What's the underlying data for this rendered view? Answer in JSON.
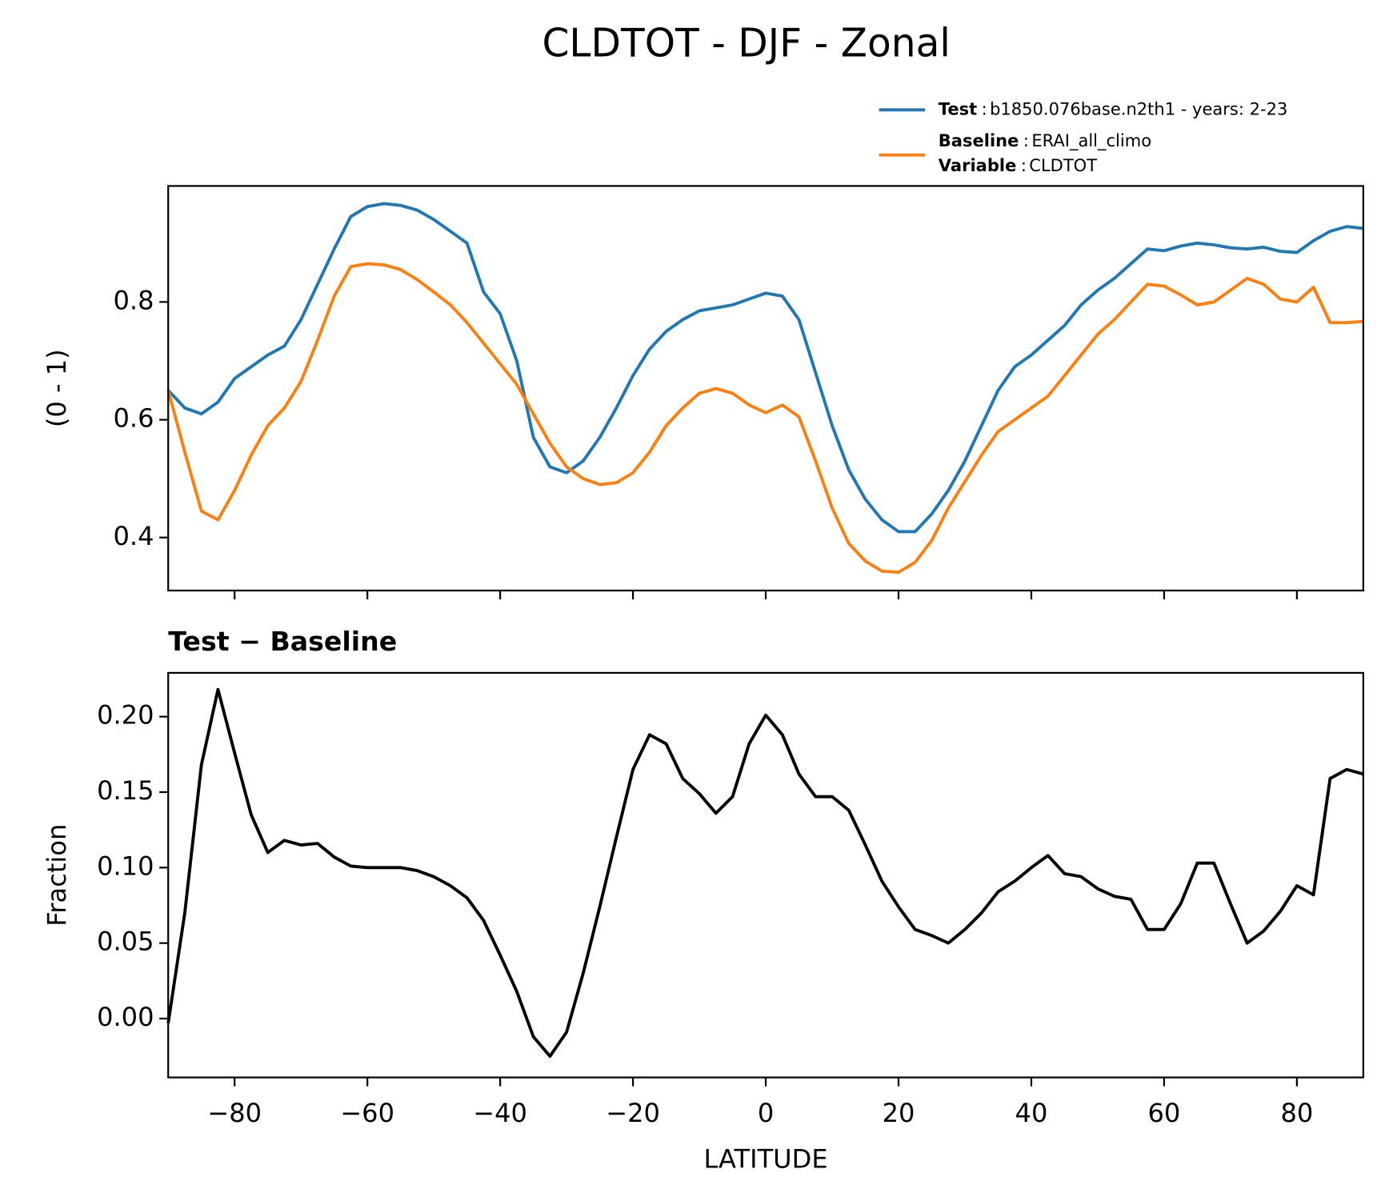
{
  "title": "CLDTOT - DJF - Zonal",
  "legend_separator": ":",
  "variable": {
    "label": "Variable",
    "value": "CLDTOT"
  },
  "chart_data": [
    {
      "type": "line",
      "ylabel": "(0 - 1)",
      "x": [
        -90,
        -87.5,
        -85,
        -82.5,
        -80,
        -77.5,
        -75,
        -72.5,
        -70,
        -67.5,
        -65,
        -62.5,
        -60,
        -57.5,
        -55,
        -52.5,
        -50,
        -47.5,
        -45,
        -42.5,
        -40,
        -37.5,
        -35,
        -32.5,
        -30,
        -27.5,
        -25,
        -22.5,
        -20,
        -17.5,
        -15,
        -12.5,
        -10,
        -7.5,
        -5,
        -2.5,
        0,
        2.5,
        5,
        7.5,
        10,
        12.5,
        15,
        17.5,
        20,
        22.5,
        25,
        27.5,
        30,
        32.5,
        35,
        37.5,
        40,
        42.5,
        45,
        47.5,
        50,
        52.5,
        55,
        57.5,
        60,
        62.5,
        65,
        67.5,
        70,
        72.5,
        75,
        77.5,
        80,
        82.5,
        85,
        87.5,
        90
      ],
      "series": [
        {
          "name": "Test",
          "description": "b1850.076base.n2th1 - years: 2-23",
          "color": "#1f77b4",
          "values": [
            0.65,
            0.62,
            0.61,
            0.63,
            0.67,
            0.69,
            0.71,
            0.725,
            0.77,
            0.83,
            0.89,
            0.945,
            0.962,
            0.967,
            0.964,
            0.956,
            0.94,
            0.92,
            0.9,
            0.817,
            0.78,
            0.7,
            0.57,
            0.52,
            0.51,
            0.53,
            0.57,
            0.62,
            0.675,
            0.72,
            0.75,
            0.77,
            0.785,
            0.79,
            0.795,
            0.805,
            0.815,
            0.81,
            0.77,
            0.68,
            0.59,
            0.515,
            0.465,
            0.43,
            0.41,
            0.41,
            0.44,
            0.48,
            0.53,
            0.59,
            0.65,
            0.69,
            0.71,
            0.735,
            0.76,
            0.795,
            0.82,
            0.84,
            0.865,
            0.89,
            0.887,
            0.895,
            0.9,
            0.897,
            0.892,
            0.89,
            0.893,
            0.886,
            0.884,
            0.904,
            0.92,
            0.928,
            0.925
          ]
        },
        {
          "name": "Baseline",
          "description": "ERAI_all_climo",
          "color": "#ff7f0e",
          "values": [
            0.65,
            0.545,
            0.445,
            0.43,
            0.48,
            0.54,
            0.59,
            0.62,
            0.665,
            0.735,
            0.81,
            0.86,
            0.865,
            0.863,
            0.855,
            0.838,
            0.817,
            0.795,
            0.765,
            0.73,
            0.695,
            0.66,
            0.61,
            0.56,
            0.52,
            0.5,
            0.49,
            0.493,
            0.51,
            0.545,
            0.59,
            0.62,
            0.645,
            0.653,
            0.645,
            0.625,
            0.612,
            0.625,
            0.605,
            0.53,
            0.45,
            0.39,
            0.36,
            0.343,
            0.341,
            0.358,
            0.395,
            0.45,
            0.495,
            0.54,
            0.58,
            0.6,
            0.62,
            0.64,
            0.675,
            0.71,
            0.745,
            0.77,
            0.8,
            0.83,
            0.827,
            0.812,
            0.795,
            0.8,
            0.82,
            0.84,
            0.83,
            0.805,
            0.8,
            0.825,
            0.765,
            0.765,
            0.767
          ]
        }
      ],
      "xlim": [
        -90,
        90
      ],
      "xticks": [
        -80,
        -60,
        -40,
        -20,
        0,
        20,
        40,
        60,
        80
      ],
      "ylim": [
        0.31,
        0.997
      ],
      "yticks": [
        0.4,
        0.6,
        0.8
      ]
    },
    {
      "type": "line",
      "title": "Test − Baseline",
      "xlabel": "LATITUDE",
      "ylabel": "Fraction",
      "x": [
        -90,
        -87.5,
        -85,
        -82.5,
        -80,
        -77.5,
        -75,
        -72.5,
        -70,
        -67.5,
        -65,
        -62.5,
        -60,
        -57.5,
        -55,
        -52.5,
        -50,
        -47.5,
        -45,
        -42.5,
        -40,
        -37.5,
        -35,
        -32.5,
        -30,
        -27.5,
        -25,
        -22.5,
        -20,
        -17.5,
        -15,
        -12.5,
        -10,
        -7.5,
        -5,
        -2.5,
        0,
        2.5,
        5,
        7.5,
        10,
        12.5,
        15,
        17.5,
        20,
        22.5,
        25,
        27.5,
        30,
        32.5,
        35,
        37.5,
        40,
        42.5,
        45,
        47.5,
        50,
        52.5,
        55,
        57.5,
        60,
        62.5,
        65,
        67.5,
        70,
        72.5,
        75,
        77.5,
        80,
        82.5,
        85,
        87.5,
        90
      ],
      "series": [
        {
          "name": "Test − Baseline",
          "color": "#000000",
          "values": [
            -0.003,
            0.07,
            0.168,
            0.218,
            0.176,
            0.135,
            0.11,
            0.118,
            0.115,
            0.116,
            0.107,
            0.101,
            0.1,
            0.1,
            0.1,
            0.098,
            0.094,
            0.088,
            0.08,
            0.065,
            0.042,
            0.018,
            -0.012,
            -0.025,
            -0.009,
            0.03,
            0.074,
            0.12,
            0.165,
            0.188,
            0.182,
            0.159,
            0.149,
            0.136,
            0.147,
            0.182,
            0.201,
            0.188,
            0.162,
            0.147,
            0.147,
            0.138,
            0.115,
            0.091,
            0.074,
            0.059,
            0.055,
            0.05,
            0.059,
            0.07,
            0.084,
            0.091,
            0.1,
            0.108,
            0.096,
            0.094,
            0.086,
            0.081,
            0.079,
            0.059,
            0.059,
            0.076,
            0.103,
            0.103,
            0.076,
            0.05,
            0.058,
            0.071,
            0.088,
            0.082,
            0.159,
            0.165,
            0.162
          ]
        }
      ],
      "xlim": [
        -90,
        90
      ],
      "xticks": [
        {
          "value": -80,
          "label": "−80"
        },
        {
          "value": -60,
          "label": "−60"
        },
        {
          "value": -40,
          "label": "−40"
        },
        {
          "value": -20,
          "label": "−20"
        },
        0,
        20,
        40,
        60,
        80
      ],
      "ylim": [
        -0.039,
        0.229
      ],
      "yticks": [
        {
          "value": 0,
          "label": "0.00"
        },
        {
          "value": 0.05,
          "label": "0.05"
        },
        {
          "value": 0.1,
          "label": "0.10"
        },
        {
          "value": 0.15,
          "label": "0.15"
        },
        {
          "value": 0.2,
          "label": "0.20"
        }
      ]
    }
  ]
}
